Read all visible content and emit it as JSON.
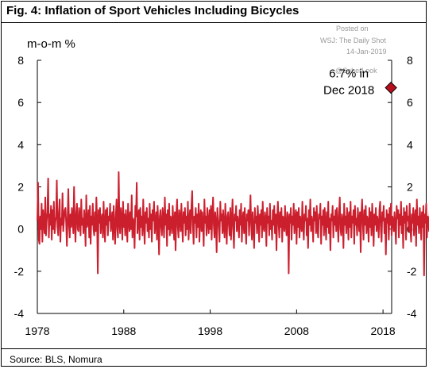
{
  "title": "Fig. 4: Inflation of Sport Vehicles Including Bicycles",
  "source": "Source: BLS, Nomura",
  "watermark": {
    "line1": "Posted on",
    "line2": "WSJ: The Daily Shot",
    "line3": "14-Jan-2019",
    "line4": "@SoberLook"
  },
  "colors": {
    "series": "#cc1f2e",
    "marker": "#b80f1c"
  },
  "chart_data": {
    "type": "line",
    "ylabel": "m-o-m %",
    "xlim": [
      1978,
      2019
    ],
    "ylim": [
      -4,
      8
    ],
    "x_ticks": [
      "1978",
      "1988",
      "1998",
      "2008",
      "2018"
    ],
    "y_ticks": [
      "8",
      "6",
      "4",
      "2",
      "0",
      "-2",
      "-4"
    ],
    "annotation": {
      "line1": "6.7% in",
      "line2": "Dec 2018",
      "x": 2018.92,
      "y": 6.7
    },
    "series": [
      {
        "x_start": 1978.0,
        "x_step": 0.0833333,
        "values": [
          0.4,
          2.2,
          -0.5,
          -0.7,
          0.6,
          0.0,
          1.2,
          -0.6,
          0.9,
          0.3,
          -0.2,
          1.5,
          -0.3,
          0.4,
          0.8,
          2.4,
          -0.4,
          0.7,
          0.2,
          1.1,
          -0.5,
          0.9,
          0.0,
          1.3,
          -0.2,
          0.3,
          0.6,
          2.3,
          0.1,
          -0.3,
          0.8,
          1.4,
          -0.6,
          0.5,
          0.2,
          1.7,
          -0.1,
          0.4,
          0.9,
          1.0,
          0.3,
          -0.8,
          0.5,
          1.9,
          0.2,
          -0.4,
          0.7,
          0.1,
          1.0,
          0.4,
          -0.2,
          2.0,
          0.3,
          -0.6,
          0.8,
          1.2,
          0.0,
          -0.1,
          1.0,
          0.6,
          -0.3,
          1.4,
          0.2,
          0.5,
          -0.2,
          0.9,
          0.4,
          -0.8,
          1.6,
          0.1,
          0.3,
          0.9,
          -0.4,
          1.1,
          -0.7,
          0.6,
          0.2,
          1.2,
          0.0,
          -0.3,
          0.8,
          -0.1,
          1.5,
          0.4,
          -2.1,
          0.9,
          0.3,
          1.0,
          -0.2,
          0.5,
          0.7,
          -0.4,
          1.3,
          0.1,
          -0.6,
          0.9,
          0.2,
          1.0,
          -0.3,
          0.6,
          0.4,
          1.2,
          -0.1,
          0.3,
          0.8,
          -0.5,
          1.1,
          0.2,
          -0.7,
          0.6,
          1.4,
          0.0,
          -0.4,
          2.7,
          0.3,
          -0.2,
          1.0,
          0.5,
          -0.5,
          1.3,
          0.1,
          0.7,
          -0.3,
          0.9,
          0.2,
          -0.6,
          1.2,
          0.4,
          -0.1,
          0.8,
          0.0,
          1.6,
          -0.4,
          0.5,
          0.3,
          -0.9,
          1.1,
          0.6,
          2.2,
          -0.2,
          0.4,
          0.9,
          -0.5,
          1.0,
          0.1,
          0.6,
          -0.3,
          1.4,
          0.2,
          -0.7,
          0.8,
          0.3,
          1.0,
          -0.1,
          0.5,
          -0.4,
          1.2,
          0.0,
          0.7,
          -0.6,
          0.9,
          0.4,
          1.3,
          -0.2,
          0.3,
          0.8,
          -0.5,
          1.1,
          0.2,
          -1.2,
          0.6,
          0.9,
          0.1,
          -0.3,
          1.0,
          0.5,
          -0.4,
          1.5,
          0.2,
          0.7,
          -0.8,
          0.9,
          0.0,
          1.2,
          -0.3,
          0.6,
          0.4,
          -0.2,
          1.1,
          0.3,
          -0.5,
          0.8,
          -1.0,
          0.7,
          1.4,
          0.1,
          -0.4,
          0.9,
          0.5,
          -0.1,
          1.2,
          0.2,
          -0.6,
          0.8,
          0.3,
          1.0,
          -0.3,
          0.6,
          0.0,
          1.3,
          -0.5,
          0.4,
          0.9,
          -0.2,
          1.1,
          1.8,
          0.2,
          -0.7,
          0.6,
          0.3,
          1.0,
          -0.4,
          0.7,
          0.1,
          1.2,
          -0.6,
          0.5,
          0.9,
          -0.1,
          0.8,
          0.2,
          -0.8,
          1.4,
          0.3,
          0.6,
          -0.3,
          1.0,
          0.4,
          -0.2,
          0.9,
          0.0,
          1.1,
          -0.5,
          0.7,
          1.5,
          0.2,
          -0.4,
          0.8,
          0.3,
          -1.1,
          1.0,
          0.5,
          0.1,
          -0.6,
          1.3,
          0.4,
          0.7,
          -0.2,
          0.9,
          0.1,
          -0.4,
          1.2,
          0.3,
          -0.7,
          0.6,
          0.8,
          0.2,
          -0.3,
          1.0,
          -0.5,
          0.5,
          1.4,
          0.0,
          -0.9,
          0.7,
          0.4,
          1.1,
          -0.1,
          0.6,
          0.3,
          -0.4,
          0.9,
          0.2,
          1.2,
          -0.6,
          0.5,
          0.8,
          -0.2,
          1.0,
          0.1,
          -0.7,
          0.7,
          0.4,
          0.9,
          -0.3,
          0.6,
          1.6,
          0.2,
          -0.5,
          0.8,
          0.0,
          -0.9,
          1.0,
          0.3,
          0.6,
          -0.2,
          1.1,
          0.4,
          -0.6,
          0.7,
          0.2,
          0.9,
          -0.4,
          1.3,
          0.1,
          -0.1,
          0.8,
          0.5,
          -0.8,
          1.0,
          0.3,
          0.6,
          -0.3,
          1.2,
          0.0,
          0.4,
          -0.5,
          0.9,
          0.2,
          1.1,
          -0.2,
          0.7,
          -1.0,
          0.5,
          1.3,
          0.3,
          -0.4,
          0.8,
          0.1,
          1.0,
          -0.6,
          0.6,
          0.4,
          -0.1,
          1.1,
          0.2,
          -0.3,
          0.8,
          0.5,
          -2.1,
          0.7,
          0.3,
          1.0,
          -0.5,
          0.6,
          0.2,
          1.2,
          -0.2,
          0.4,
          0.9,
          -0.7,
          0.8,
          0.1,
          1.0,
          -0.4,
          0.6,
          0.3,
          -0.1,
          1.3,
          0.2,
          -0.5,
          0.7,
          0.4,
          1.1,
          -0.3,
          0.5,
          -0.9,
          0.9,
          0.2,
          1.4,
          -0.1,
          0.6,
          0.3,
          -0.6,
          1.0,
          0.4,
          0.8,
          -0.2,
          1.1,
          0.0,
          -0.4,
          0.7,
          0.5,
          1.2,
          -0.7,
          0.6,
          0.2,
          0.9,
          -0.3,
          1.0,
          0.3,
          -0.5,
          0.8,
          0.1,
          1.3,
          -0.2,
          0.5,
          -1.0,
          0.7,
          0.4,
          1.1,
          -0.4,
          0.6,
          0.2,
          0.9,
          -0.1,
          1.0,
          0.3,
          -0.6,
          0.8,
          1.5,
          0.0,
          -0.3,
          0.7,
          0.4,
          -0.9,
          1.2,
          0.2,
          0.6,
          -0.2,
          1.0,
          0.5,
          -0.5,
          0.8,
          0.1,
          1.3,
          -0.4,
          0.6,
          0.3,
          0.9,
          -0.7,
          1.1,
          0.2,
          0.5,
          -0.3,
          1.0,
          0.4,
          -0.1,
          0.8,
          -1.1,
          0.7,
          1.4,
          0.3,
          -0.5,
          0.9,
          0.2,
          1.1,
          -0.2,
          0.6,
          0.4,
          -0.6,
          1.0,
          0.1,
          0.8,
          -0.3,
          1.2,
          0.5,
          -0.8,
          0.7,
          0.2,
          1.0,
          -0.1,
          0.6,
          0.3,
          -0.4,
          0.9,
          1.3,
          0.0,
          -0.6,
          0.8,
          0.4,
          1.1,
          -0.2,
          0.5,
          -1.2,
          0.9,
          0.3,
          0.7,
          -0.5,
          1.0,
          0.2,
          1.2,
          -0.3,
          0.6,
          0.4,
          -0.1,
          0.8,
          0.1,
          -0.7,
          1.1,
          0.5,
          0.9,
          -0.4,
          0.7,
          0.2,
          1.3,
          -0.2,
          0.6,
          -0.9,
          1.0,
          0.3,
          0.8,
          -0.5,
          1.1,
          0.4,
          0.6,
          -0.1,
          1.2,
          0.0,
          -0.6,
          0.7,
          0.3,
          1.0,
          -0.3,
          0.5,
          0.9,
          -0.8,
          1.4,
          0.2,
          0.6,
          -0.2,
          1.0,
          0.4,
          -0.5,
          0.8,
          0.1,
          1.1,
          -2.2,
          0.7,
          0.3,
          1.2,
          -0.4,
          0.6,
          0.5,
          -0.1,
          0.9,
          0.2,
          -0.7,
          1.0,
          0.4,
          0.8,
          -0.3,
          1.5,
          0.1,
          -0.5,
          0.7,
          0.3,
          1.1,
          -0.2,
          0.6,
          -1.0,
          0.9,
          0.4,
          1.2,
          -0.6,
          0.5,
          0.2,
          0.8,
          -0.1,
          1.0,
          0.3,
          -0.4,
          0.7,
          1.3,
          0.0,
          -0.8,
          0.9,
          0.5,
          -1.3,
          1.1,
          0.2,
          0.6,
          -0.3,
          1.0,
          0.4,
          2.2,
          -0.5,
          0.8,
          0.1,
          1.2,
          -0.2,
          0.7,
          -0.6,
          0.9,
          0.3,
          1.4,
          -1.1,
          0.6,
          0.2,
          1.0,
          -0.4,
          0.8,
          1.6,
          0.3,
          -1.8,
          0.7,
          0.4,
          -1.7,
          2.2,
          -0.9,
          -1.7,
          6.7
        ]
      }
    ]
  }
}
